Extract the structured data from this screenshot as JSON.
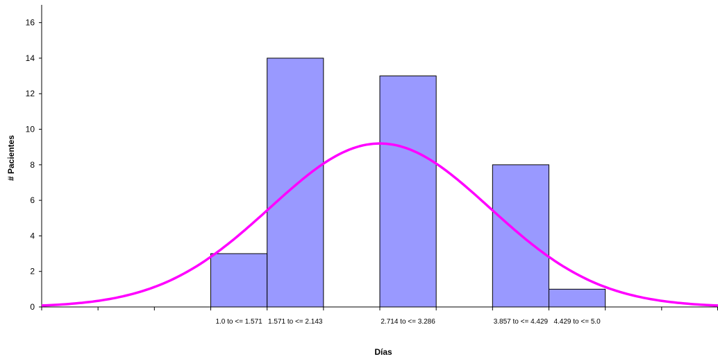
{
  "chart_data": {
    "type": "bar",
    "xlabel": "Días",
    "ylabel": "# Pacientes",
    "ylim": [
      0,
      17
    ],
    "yticks": [
      0,
      2,
      4,
      6,
      8,
      10,
      12,
      14,
      16
    ],
    "bin_slots": 12,
    "bins": [
      {
        "slot": 3,
        "value": 3,
        "label": "1.0 to <= 1.571"
      },
      {
        "slot": 4,
        "value": 14,
        "label": "1.571 to <= 2.143"
      },
      {
        "slot": 6,
        "value": 13,
        "label": "2.714 to <= 3.286"
      },
      {
        "slot": 8,
        "value": 8,
        "label": "3.857 to <= 4.429"
      },
      {
        "slot": 9,
        "value": 1,
        "label": "4.429 to <= 5.0"
      }
    ],
    "normal_curve": {
      "peak_slot": 6,
      "peak_value": 9.2,
      "sigma_slots": 1.95
    },
    "colors": {
      "bar_fill": "#9999ff",
      "bar_stroke": "#000000",
      "curve": "#ff00ff"
    }
  }
}
